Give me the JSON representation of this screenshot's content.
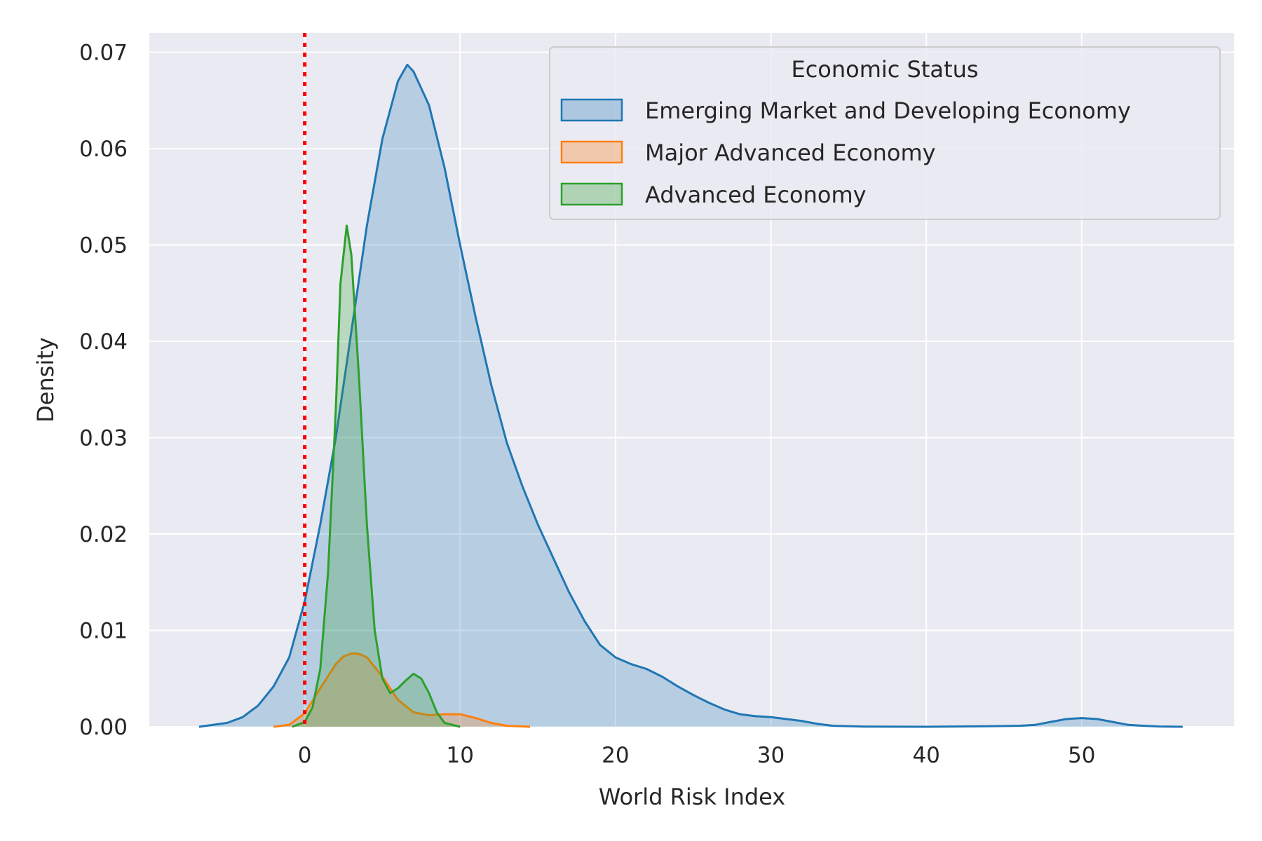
{
  "chart_data": {
    "type": "area",
    "title": "",
    "xlabel": "World Risk Index",
    "ylabel": "Density",
    "xlim": [
      -10,
      59.8
    ],
    "ylim": [
      0,
      0.072
    ],
    "xticks": [
      0,
      10,
      20,
      30,
      40,
      50
    ],
    "xtick_labels": [
      "0",
      "10",
      "20",
      "30",
      "40",
      "50"
    ],
    "yticks": [
      0,
      0.01,
      0.02,
      0.03,
      0.04,
      0.05,
      0.06,
      0.07
    ],
    "ytick_labels": [
      "0.00",
      "0.01",
      "0.02",
      "0.03",
      "0.04",
      "0.05",
      "0.06",
      "0.07"
    ],
    "grid": true,
    "background": "#eaeaf2",
    "legend": {
      "title": "Economic Status",
      "placement": "top-right"
    },
    "reference_line": {
      "x": 0,
      "color": "#ff0000",
      "style": "dotted"
    },
    "series": [
      {
        "name": "Emerging Market and Developing Economy",
        "color": "#1f77b4",
        "x": [
          -6.8,
          -5,
          -4,
          -3,
          -2,
          -1,
          0,
          1,
          2,
          3,
          4,
          5,
          6,
          6.6,
          7,
          8,
          9,
          10,
          11,
          12,
          13,
          14,
          15,
          16,
          17,
          18,
          19,
          20,
          21,
          22,
          23,
          24,
          25,
          26,
          27,
          28,
          29,
          30,
          31,
          32,
          33,
          34,
          36,
          40,
          44,
          46,
          47,
          48,
          49,
          50,
          51,
          52,
          53,
          54,
          55,
          56.5
        ],
        "y": [
          0,
          0.0004,
          0.001,
          0.0022,
          0.0042,
          0.0072,
          0.013,
          0.021,
          0.03,
          0.041,
          0.052,
          0.061,
          0.067,
          0.0687,
          0.068,
          0.0645,
          0.058,
          0.05,
          0.0425,
          0.0355,
          0.0295,
          0.025,
          0.021,
          0.0175,
          0.014,
          0.011,
          0.0085,
          0.0072,
          0.0065,
          0.006,
          0.0052,
          0.0042,
          0.0033,
          0.0025,
          0.0018,
          0.0013,
          0.0011,
          0.001,
          0.0008,
          0.0006,
          0.0003,
          0.0001,
          2e-05,
          0.0,
          5e-05,
          0.0001,
          0.0002,
          0.0005,
          0.0008,
          0.0009,
          0.0008,
          0.0005,
          0.0002,
          0.0001,
          3e-05,
          0
        ]
      },
      {
        "name": "Major Advanced Economy",
        "color": "#ff7f0e",
        "x": [
          -2,
          -1,
          0,
          1,
          2,
          2.5,
          3,
          3.3,
          3.6,
          4,
          5,
          6,
          7,
          8,
          9,
          10,
          11,
          12,
          13,
          14.5
        ],
        "y": [
          0,
          0.0002,
          0.0014,
          0.004,
          0.0065,
          0.0073,
          0.0076,
          0.0076,
          0.0075,
          0.0072,
          0.0052,
          0.0028,
          0.0015,
          0.0012,
          0.0013,
          0.0013,
          0.0009,
          0.0004,
          0.0001,
          0
        ]
      },
      {
        "name": "Advanced Economy",
        "color": "#2ca02c",
        "x": [
          -0.8,
          0,
          0.5,
          1,
          1.5,
          2,
          2.3,
          2.7,
          3,
          3.5,
          4,
          4.5,
          5,
          5.5,
          6,
          6.5,
          7,
          7.5,
          8,
          8.5,
          9,
          10
        ],
        "y": [
          0,
          0.0005,
          0.002,
          0.006,
          0.016,
          0.033,
          0.046,
          0.052,
          0.049,
          0.036,
          0.021,
          0.01,
          0.005,
          0.0035,
          0.004,
          0.0048,
          0.0055,
          0.005,
          0.0035,
          0.0015,
          0.0004,
          0
        ]
      }
    ]
  }
}
